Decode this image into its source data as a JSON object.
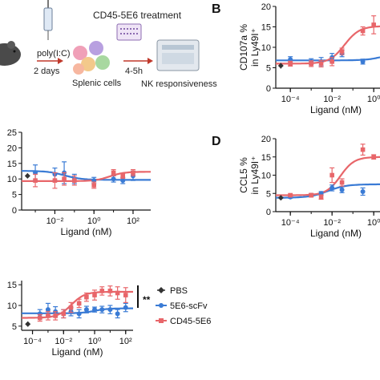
{
  "colors": {
    "pbs": "#333333",
    "scfv": "#3a7bd5",
    "cd45": "#e8666a"
  },
  "schematic": {
    "treatment_label": "CD45-5E6 treatment",
    "agent_label": "poly(I:C)",
    "time1_label": "2 days",
    "cells_label": "Splenic cells",
    "time2_label": "4-5h",
    "readout_label": "NK responsiveness",
    "icons": [
      "mouse-icon",
      "syringe-icon",
      "cells-icon",
      "well-plate-icon",
      "analyzer-icon"
    ]
  },
  "panels": {
    "B": {
      "letter": "B"
    },
    "D": {
      "letter": "D"
    }
  },
  "legend": {
    "items": [
      {
        "key": "pbs",
        "label": "PBS"
      },
      {
        "key": "scfv",
        "label": "5E6-scFv"
      },
      {
        "key": "cd45",
        "label": "CD45-5E6"
      }
    ]
  },
  "significance": {
    "label": "**"
  },
  "chart_data": [
    {
      "id": "B",
      "type": "scatter",
      "xscale": "log",
      "xlim": [
        2e-05,
        2
      ],
      "ylim": [
        0,
        20
      ],
      "yticks": [
        0,
        5,
        10,
        15,
        20
      ],
      "ytick_labels": [
        "0",
        "5",
        "10",
        "15",
        "20"
      ],
      "xticks": [
        0.0001,
        0.01,
        1
      ],
      "xtick_labels": [
        "10⁻⁴",
        "10⁻²",
        "10⁰"
      ],
      "xlabel": "Ligand (nM)",
      "ylabel": "CD107a %\nin Ly49I⁺",
      "pbs": {
        "x": 3.5e-05,
        "y": 5.5,
        "err": 0.7
      },
      "series": [
        {
          "name": "5E6-scFv",
          "key": "scfv",
          "x": [
            0.0001,
            0.001,
            0.003,
            0.01,
            0.03,
            0.3
          ],
          "y": [
            7.0,
            6.5,
            6.5,
            7.5,
            8.5,
            6.5
          ],
          "err": [
            0.7,
            0.7,
            1.0,
            1.0,
            0.8,
            0.6
          ],
          "fit": {
            "bottom": 6.8,
            "top": 9.5,
            "logec50": 0.7,
            "hill": 1.0
          }
        },
        {
          "name": "CD45-5E6",
          "key": "cd45",
          "x": [
            0.0001,
            0.001,
            0.003,
            0.01,
            0.03,
            0.3,
            1,
            3
          ],
          "y": [
            6.0,
            6.0,
            6.0,
            6.5,
            9.0,
            14.0,
            15.5,
            14.5
          ],
          "err": [
            0.6,
            0.7,
            0.8,
            1.0,
            0.8,
            1.0,
            2.2,
            0.8
          ],
          "fit": {
            "bottom": 6.0,
            "top": 15.2,
            "logec50": -1.4,
            "hill": 1.2
          }
        }
      ]
    },
    {
      "id": "C",
      "type": "scatter",
      "xscale": "log",
      "xlim": [
        0.0002,
        800
      ],
      "ylim": [
        0,
        25
      ],
      "yticks": [
        0,
        5,
        10,
        15,
        20,
        25
      ],
      "ytick_labels": [
        "0",
        "5",
        "10",
        "15",
        "20",
        "25"
      ],
      "xticks": [
        0.0001,
        0.01,
        1,
        100
      ],
      "xtick_labels": [
        "10⁻⁴",
        "10⁻²",
        "10⁰",
        "10²"
      ],
      "xlabel": "Ligand (nM)",
      "ylabel": "",
      "pbs": {
        "x": 0.0004,
        "y": 11.0,
        "err": 0.8
      },
      "series": [
        {
          "name": "5E6-scFv",
          "key": "scfv",
          "x": [
            0.001,
            0.01,
            0.03,
            0.1,
            1,
            10,
            30,
            100
          ],
          "y": [
            12.0,
            11.5,
            12.0,
            10.0,
            9.5,
            10.0,
            9.5,
            11.0
          ],
          "err": [
            2.5,
            2.0,
            3.5,
            1.5,
            1.0,
            1.0,
            1.0,
            1.5
          ],
          "fit": {
            "bottom": 12.6,
            "top": 9.7,
            "logec50": -1.5,
            "hill": 1.0
          }
        },
        {
          "name": "CD45-5E6",
          "key": "cd45",
          "x": [
            0.001,
            0.01,
            0.03,
            0.1,
            1,
            10,
            30,
            100
          ],
          "y": [
            9.5,
            9.5,
            10.0,
            9.5,
            8.0,
            12.0,
            11.0,
            12.0
          ],
          "err": [
            2.0,
            2.5,
            2.0,
            1.5,
            1.0,
            1.0,
            0.8,
            1.0
          ],
          "fit": {
            "bottom": 9.3,
            "top": 12.3,
            "logec50": 0.8,
            "hill": 1.2
          }
        }
      ]
    },
    {
      "id": "D",
      "type": "scatter",
      "xscale": "log",
      "xlim": [
        2e-05,
        2
      ],
      "ylim": [
        0,
        20
      ],
      "yticks": [
        0,
        5,
        10,
        15,
        20
      ],
      "ytick_labels": [
        "0",
        "5",
        "10",
        "15",
        "20"
      ],
      "xticks": [
        0.0001,
        0.01,
        1
      ],
      "xtick_labels": [
        "10⁻⁴",
        "10⁻²",
        "10⁰"
      ],
      "xlabel": "Ligand (nM)",
      "ylabel": "CCL5 %\nin Ly49I⁺",
      "pbs": {
        "x": 3.5e-05,
        "y": 3.8,
        "err": 0.3
      },
      "series": [
        {
          "name": "5E6-scFv",
          "key": "scfv",
          "x": [
            0.0001,
            0.001,
            0.003,
            0.01,
            0.03,
            0.3
          ],
          "y": [
            4.0,
            4.5,
            5.0,
            6.5,
            6.0,
            5.5
          ],
          "err": [
            0.3,
            0.4,
            0.5,
            0.8,
            0.8,
            1.0
          ],
          "fit": {
            "bottom": 3.8,
            "top": 7.5,
            "logec50": -2.2,
            "hill": 1.0
          }
        },
        {
          "name": "CD45-5E6",
          "key": "cd45",
          "x": [
            0.0001,
            0.001,
            0.003,
            0.01,
            0.03,
            0.3,
            1,
            3
          ],
          "y": [
            4.5,
            4.5,
            4.0,
            10.0,
            8.0,
            17.0,
            15.0,
            13.0
          ],
          "err": [
            0.3,
            0.5,
            0.6,
            2.0,
            1.0,
            1.5,
            0.6,
            0.8
          ],
          "fit": {
            "bottom": 4.5,
            "top": 15.0,
            "logec50": -1.6,
            "hill": 1.3
          }
        }
      ]
    },
    {
      "id": "E",
      "type": "scatter",
      "xscale": "log",
      "xlim": [
        2e-05,
        300
      ],
      "ylim": [
        4,
        16
      ],
      "yticks": [
        5,
        10,
        15
      ],
      "ytick_labels": [
        "5",
        "10",
        "15"
      ],
      "xticks": [
        0.0001,
        0.01,
        1,
        100
      ],
      "xtick_labels": [
        "10⁻⁴",
        "10⁻²",
        "10⁰",
        "10²"
      ],
      "xlabel": "Ligand (nM)",
      "ylabel": "",
      "pbs": {
        "x": 5e-05,
        "y": 5.5,
        "err": 0.6
      },
      "series": [
        {
          "name": "5E6-scFv",
          "key": "scfv",
          "x": [
            0.0003,
            0.001,
            0.003,
            0.01,
            0.03,
            0.1,
            0.3,
            1,
            3,
            10,
            30,
            100
          ],
          "y": [
            8.0,
            9.0,
            8.5,
            8.0,
            8.5,
            8.0,
            9.0,
            9.0,
            9.0,
            9.0,
            8.0,
            9.5
          ],
          "err": [
            1.0,
            1.5,
            1.2,
            1.0,
            1.0,
            1.0,
            0.8,
            0.6,
            0.8,
            1.0,
            1.0,
            1.0
          ],
          "fit": {
            "bottom": 8.1,
            "top": 9.3,
            "logec50": 0.0,
            "hill": 1.0
          }
        },
        {
          "name": "CD45-5E6",
          "key": "cd45",
          "x": [
            0.0003,
            0.001,
            0.003,
            0.01,
            0.03,
            0.1,
            0.3,
            1,
            3,
            10,
            30,
            100
          ],
          "y": [
            7.0,
            7.5,
            7.5,
            8.0,
            9.5,
            10.5,
            12.0,
            12.5,
            13.5,
            13.5,
            13.0,
            12.5
          ],
          "err": [
            0.8,
            1.0,
            1.0,
            1.0,
            1.2,
            1.0,
            1.0,
            1.2,
            1.0,
            1.2,
            1.5,
            1.8
          ],
          "fit": {
            "bottom": 7.0,
            "top": 13.3,
            "logec50": -1.5,
            "hill": 1.0
          }
        }
      ]
    }
  ]
}
